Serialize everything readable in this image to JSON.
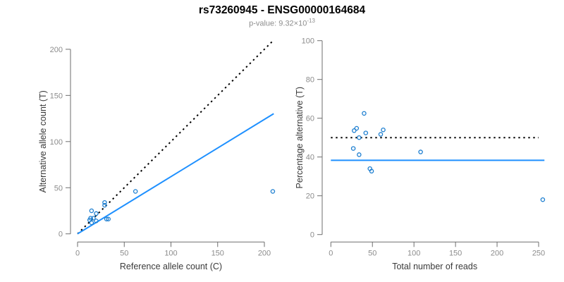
{
  "header": {
    "title": "rs73260945 - ENSG00000164684",
    "subtitle_base": "p-value: 9.32×10",
    "subtitle_exponent": "-13"
  },
  "colors": {
    "point_blue": "#1c7ed0",
    "line_blue": "#1e90ff",
    "dotted_line": "#000000",
    "axis_line": "#6e6e6e",
    "tick_text": "#8c8c8c",
    "label_text": "#3a3a3a",
    "background": "#ffffff"
  },
  "chart_data": [
    {
      "type": "scatter",
      "name": "allele-counts-scatter",
      "xlabel": "Reference allele count (C)",
      "ylabel": "Alternative allele count (T)",
      "xlim": [
        0,
        200
      ],
      "ylim": [
        0,
        200
      ],
      "xticks": [
        0,
        50,
        100,
        150,
        200
      ],
      "yticks": [
        0,
        50,
        100,
        150,
        200
      ],
      "grid": false,
      "legend": "none",
      "points": [
        [
          15,
          12
        ],
        [
          13,
          15
        ],
        [
          14,
          17
        ],
        [
          17,
          17
        ],
        [
          20,
          14
        ],
        [
          15,
          25
        ],
        [
          20,
          22
        ],
        [
          31,
          16
        ],
        [
          33,
          16
        ],
        [
          29,
          31
        ],
        [
          29,
          34
        ],
        [
          62,
          46
        ],
        [
          209,
          46
        ]
      ],
      "lines": [
        {
          "name": "identity-line",
          "kind": "abline",
          "slope": 1,
          "intercept": 0,
          "x_range": [
            0,
            210
          ],
          "style": "dotted",
          "color": "black"
        },
        {
          "name": "fit-line",
          "kind": "abline",
          "slope": 0.62,
          "intercept": 0,
          "x_range": [
            0,
            210
          ],
          "style": "solid",
          "color": "blue"
        }
      ]
    },
    {
      "type": "scatter",
      "name": "percentage-vs-reads-scatter",
      "xlabel": "Total number of reads",
      "ylabel": "Percentage alternative (T)",
      "xlim": [
        0,
        250
      ],
      "ylim": [
        0,
        100
      ],
      "xticks": [
        0,
        50,
        100,
        150,
        200,
        250
      ],
      "yticks": [
        0,
        20,
        40,
        60,
        80,
        100
      ],
      "grid": false,
      "legend": "none",
      "points": [
        [
          27,
          44.4
        ],
        [
          28,
          53.6
        ],
        [
          31,
          54.8
        ],
        [
          34,
          50.0
        ],
        [
          34,
          41.2
        ],
        [
          40,
          62.5
        ],
        [
          42,
          52.4
        ],
        [
          47,
          34.0
        ],
        [
          49,
          32.7
        ],
        [
          60,
          51.7
        ],
        [
          63,
          54.0
        ],
        [
          108,
          42.6
        ],
        [
          255,
          18.0
        ]
      ],
      "lines": [
        {
          "name": "expected-50pct-line",
          "kind": "hline",
          "y": 50,
          "x_range": [
            0,
            250
          ],
          "style": "dotted",
          "color": "black"
        },
        {
          "name": "fit-mean-line",
          "kind": "hline",
          "y": 38.3,
          "x_range": [
            0,
            257
          ],
          "style": "solid",
          "color": "blue"
        }
      ]
    }
  ]
}
